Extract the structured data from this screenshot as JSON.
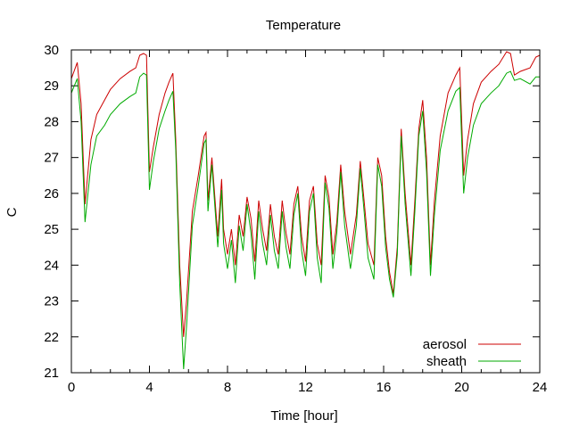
{
  "chart_data": {
    "type": "line",
    "title": "Temperature",
    "xlabel": "Time [hour]",
    "ylabel": "C",
    "xlim": [
      0,
      24
    ],
    "ylim": [
      21,
      30
    ],
    "x_ticks": [
      0,
      4,
      8,
      12,
      16,
      20,
      24
    ],
    "y_ticks": [
      21,
      22,
      23,
      24,
      25,
      26,
      27,
      28,
      29,
      30
    ],
    "grid": false,
    "legend_position": "bottom-right",
    "series": [
      {
        "name": "aerosol",
        "color": "#cc0000",
        "points": [
          [
            0,
            29.2
          ],
          [
            0.3,
            29.65
          ],
          [
            0.5,
            28.5
          ],
          [
            0.7,
            25.7
          ],
          [
            1.0,
            27.5
          ],
          [
            1.3,
            28.2
          ],
          [
            1.7,
            28.6
          ],
          [
            2.0,
            28.9
          ],
          [
            2.5,
            29.2
          ],
          [
            3.0,
            29.4
          ],
          [
            3.3,
            29.5
          ],
          [
            3.5,
            29.85
          ],
          [
            3.7,
            29.9
          ],
          [
            3.85,
            29.85
          ],
          [
            4.0,
            26.6
          ],
          [
            4.2,
            27.3
          ],
          [
            4.5,
            28.2
          ],
          [
            4.8,
            28.8
          ],
          [
            5.0,
            29.1
          ],
          [
            5.2,
            29.35
          ],
          [
            5.35,
            27.5
          ],
          [
            5.55,
            24.0
          ],
          [
            5.75,
            22.0
          ],
          [
            5.9,
            23.0
          ],
          [
            6.2,
            25.5
          ],
          [
            6.5,
            26.5
          ],
          [
            6.8,
            27.6
          ],
          [
            6.9,
            27.7
          ],
          [
            7.0,
            25.8
          ],
          [
            7.2,
            27.0
          ],
          [
            7.5,
            24.8
          ],
          [
            7.7,
            26.4
          ],
          [
            7.8,
            25.0
          ],
          [
            8.0,
            24.3
          ],
          [
            8.2,
            25.0
          ],
          [
            8.4,
            24.0
          ],
          [
            8.6,
            25.4
          ],
          [
            8.8,
            24.8
          ],
          [
            9.0,
            25.9
          ],
          [
            9.2,
            25.3
          ],
          [
            9.4,
            24.1
          ],
          [
            9.6,
            25.8
          ],
          [
            9.8,
            25.0
          ],
          [
            10.0,
            24.4
          ],
          [
            10.2,
            25.7
          ],
          [
            10.4,
            24.8
          ],
          [
            10.6,
            24.3
          ],
          [
            10.8,
            25.8
          ],
          [
            11.0,
            24.9
          ],
          [
            11.2,
            24.3
          ],
          [
            11.4,
            25.7
          ],
          [
            11.6,
            26.2
          ],
          [
            11.8,
            24.8
          ],
          [
            12.0,
            24.1
          ],
          [
            12.2,
            25.8
          ],
          [
            12.4,
            26.2
          ],
          [
            12.6,
            24.6
          ],
          [
            12.8,
            24.0
          ],
          [
            13.0,
            26.5
          ],
          [
            13.2,
            25.9
          ],
          [
            13.4,
            24.3
          ],
          [
            13.6,
            25.2
          ],
          [
            13.8,
            26.8
          ],
          [
            14.0,
            25.5
          ],
          [
            14.3,
            24.3
          ],
          [
            14.6,
            25.4
          ],
          [
            14.8,
            26.9
          ],
          [
            15.0,
            25.8
          ],
          [
            15.2,
            24.6
          ],
          [
            15.5,
            24.0
          ],
          [
            15.7,
            27.0
          ],
          [
            15.9,
            26.5
          ],
          [
            16.1,
            24.8
          ],
          [
            16.3,
            23.8
          ],
          [
            16.5,
            23.2
          ],
          [
            16.7,
            24.5
          ],
          [
            16.9,
            27.8
          ],
          [
            17.1,
            26.0
          ],
          [
            17.4,
            24.0
          ],
          [
            17.6,
            25.8
          ],
          [
            17.8,
            27.8
          ],
          [
            18.0,
            28.6
          ],
          [
            18.2,
            27.0
          ],
          [
            18.4,
            24.0
          ],
          [
            18.6,
            25.8
          ],
          [
            18.9,
            27.6
          ],
          [
            19.3,
            28.8
          ],
          [
            19.7,
            29.3
          ],
          [
            19.9,
            29.5
          ],
          [
            20.1,
            26.5
          ],
          [
            20.3,
            27.5
          ],
          [
            20.6,
            28.5
          ],
          [
            21.0,
            29.1
          ],
          [
            21.5,
            29.4
          ],
          [
            21.9,
            29.6
          ],
          [
            22.3,
            29.95
          ],
          [
            22.5,
            29.9
          ],
          [
            22.7,
            29.3
          ],
          [
            23.0,
            29.4
          ],
          [
            23.5,
            29.5
          ],
          [
            23.8,
            29.8
          ],
          [
            24.0,
            29.85
          ]
        ]
      },
      {
        "name": "sheath",
        "color": "#00aa00",
        "points": [
          [
            0,
            28.8
          ],
          [
            0.3,
            29.2
          ],
          [
            0.5,
            28.0
          ],
          [
            0.7,
            25.2
          ],
          [
            1.0,
            26.8
          ],
          [
            1.3,
            27.6
          ],
          [
            1.7,
            27.9
          ],
          [
            2.0,
            28.2
          ],
          [
            2.5,
            28.5
          ],
          [
            3.0,
            28.7
          ],
          [
            3.3,
            28.8
          ],
          [
            3.5,
            29.25
          ],
          [
            3.7,
            29.35
          ],
          [
            3.85,
            29.3
          ],
          [
            4.0,
            26.1
          ],
          [
            4.2,
            26.9
          ],
          [
            4.5,
            27.8
          ],
          [
            4.8,
            28.3
          ],
          [
            5.0,
            28.6
          ],
          [
            5.2,
            28.85
          ],
          [
            5.35,
            27.2
          ],
          [
            5.55,
            23.5
          ],
          [
            5.75,
            21.1
          ],
          [
            5.9,
            22.3
          ],
          [
            6.2,
            25.1
          ],
          [
            6.5,
            26.2
          ],
          [
            6.8,
            27.4
          ],
          [
            6.9,
            27.5
          ],
          [
            7.0,
            25.5
          ],
          [
            7.2,
            26.8
          ],
          [
            7.5,
            24.5
          ],
          [
            7.7,
            26.1
          ],
          [
            7.8,
            24.6
          ],
          [
            8.0,
            23.9
          ],
          [
            8.2,
            24.7
          ],
          [
            8.4,
            23.5
          ],
          [
            8.6,
            25.1
          ],
          [
            8.8,
            24.4
          ],
          [
            9.0,
            25.7
          ],
          [
            9.2,
            24.9
          ],
          [
            9.4,
            23.6
          ],
          [
            9.6,
            25.5
          ],
          [
            9.8,
            24.6
          ],
          [
            10.0,
            24.0
          ],
          [
            10.2,
            25.4
          ],
          [
            10.4,
            24.4
          ],
          [
            10.6,
            23.9
          ],
          [
            10.8,
            25.5
          ],
          [
            11.0,
            24.5
          ],
          [
            11.2,
            23.9
          ],
          [
            11.4,
            25.4
          ],
          [
            11.6,
            26.0
          ],
          [
            11.8,
            24.4
          ],
          [
            12.0,
            23.7
          ],
          [
            12.2,
            25.5
          ],
          [
            12.4,
            26.0
          ],
          [
            12.6,
            24.2
          ],
          [
            12.8,
            23.5
          ],
          [
            13.0,
            26.3
          ],
          [
            13.2,
            25.6
          ],
          [
            13.4,
            23.9
          ],
          [
            13.6,
            24.9
          ],
          [
            13.8,
            26.6
          ],
          [
            14.0,
            25.1
          ],
          [
            14.3,
            23.9
          ],
          [
            14.6,
            25.1
          ],
          [
            14.8,
            26.7
          ],
          [
            15.0,
            25.5
          ],
          [
            15.2,
            24.2
          ],
          [
            15.5,
            23.6
          ],
          [
            15.7,
            26.8
          ],
          [
            15.9,
            26.2
          ],
          [
            16.1,
            24.5
          ],
          [
            16.3,
            23.6
          ],
          [
            16.5,
            23.1
          ],
          [
            16.7,
            24.3
          ],
          [
            16.9,
            27.6
          ],
          [
            17.1,
            25.7
          ],
          [
            17.4,
            23.7
          ],
          [
            17.6,
            25.5
          ],
          [
            17.8,
            27.6
          ],
          [
            18.0,
            28.3
          ],
          [
            18.2,
            26.6
          ],
          [
            18.4,
            23.7
          ],
          [
            18.6,
            25.4
          ],
          [
            18.9,
            27.2
          ],
          [
            19.3,
            28.3
          ],
          [
            19.7,
            28.85
          ],
          [
            19.9,
            28.95
          ],
          [
            20.1,
            26.0
          ],
          [
            20.3,
            27.0
          ],
          [
            20.6,
            27.9
          ],
          [
            21.0,
            28.5
          ],
          [
            21.5,
            28.8
          ],
          [
            21.9,
            29.0
          ],
          [
            22.3,
            29.35
          ],
          [
            22.5,
            29.4
          ],
          [
            22.7,
            29.15
          ],
          [
            23.0,
            29.2
          ],
          [
            23.5,
            29.05
          ],
          [
            23.8,
            29.25
          ],
          [
            24.0,
            29.25
          ]
        ]
      }
    ]
  }
}
